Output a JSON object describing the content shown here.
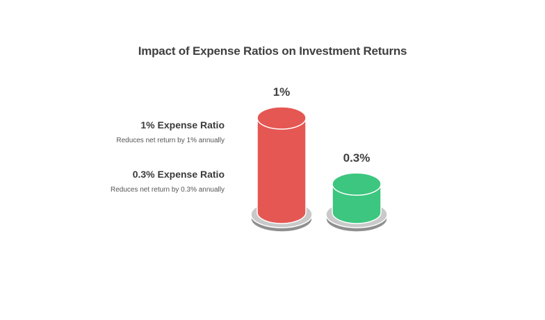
{
  "chart_data": {
    "type": "bar",
    "title": "Impact of Expense Ratios on Investment Returns",
    "categories": [
      "1% Expense Ratio",
      "0.3% Expense Ratio"
    ],
    "values": [
      1,
      0.3
    ],
    "value_labels": [
      "1%",
      "0.3%"
    ],
    "descriptions": [
      "Reduces net return by 1% annually",
      "Reduces net return by 0.3% annually"
    ],
    "colors": [
      "#e55753",
      "#3cc67f"
    ],
    "bar_style": "3d-cylinder",
    "grid": false
  }
}
